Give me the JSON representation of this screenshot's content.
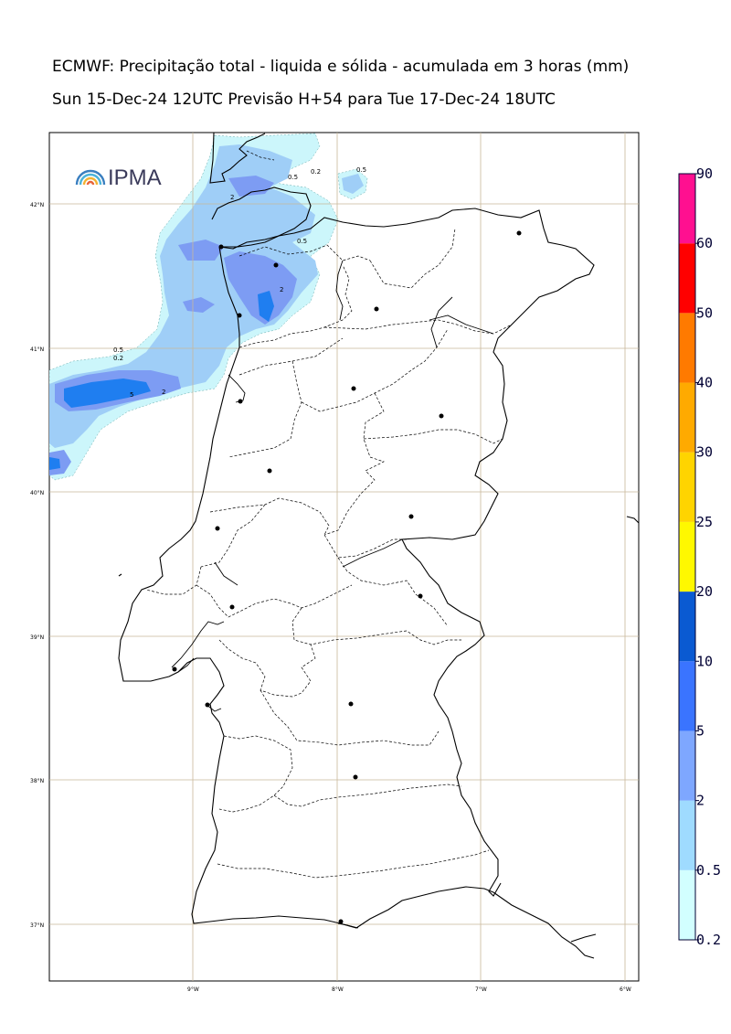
{
  "title": {
    "line1": "ECMWF: Precipitação total - liquida e sólida - acumulada em 3 horas (mm)",
    "line2": "Sun 15-Dec-24 12UTC Previsão H+54 para Tue 17-Dec-24 18UTC"
  },
  "logo": {
    "text": "IPMA",
    "icon": "rainbow-arc-icon"
  },
  "map": {
    "lat_labels": [
      "42°N",
      "41°N",
      "40°N",
      "39°N",
      "38°N",
      "37°N"
    ],
    "lon_labels": [
      "9°W",
      "8°W",
      "7°W",
      "6°W"
    ],
    "contour_labels": [
      "0.5",
      "0.2",
      "0.5",
      "2",
      "0.5",
      "2",
      "0.5",
      "0.2",
      "5",
      "2"
    ],
    "station_count": 18
  },
  "colorbar": {
    "levels": [
      "0.2",
      "0.5",
      "2",
      "5",
      "10",
      "20",
      "25",
      "30",
      "40",
      "50",
      "60",
      "90"
    ],
    "colors": [
      "#d2ffff",
      "#9fdbff",
      "#7ea7ff",
      "#3a74ff",
      "#0a5ad2",
      "#fff800",
      "#ffd400",
      "#ffaa00",
      "#ff7a00",
      "#ff0000",
      "#ff1090"
    ]
  },
  "colors": {
    "precip_light": "#ccf6fb",
    "precip_mid": "#9fcef7",
    "precip_blue": "#7d9cf3",
    "precip_strong": "#1f7ef0",
    "grid": "#c8b89a"
  }
}
